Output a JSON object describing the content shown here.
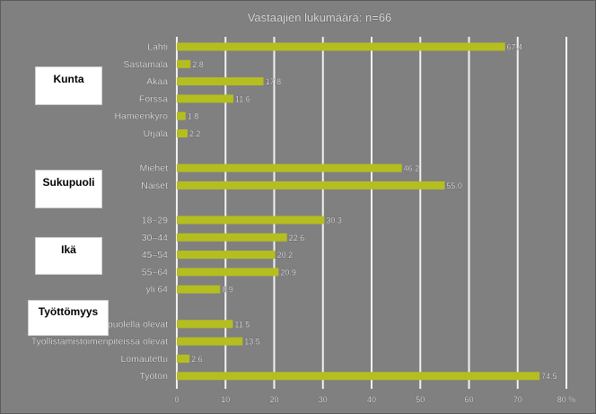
{
  "chart_data": {
    "type": "bar",
    "orientation": "horizontal",
    "title": "Vastaajien lukumäärä: n=66",
    "categories": [
      "Lahti",
      "Sastamala",
      "Akaa",
      "Forssa",
      "Hämeenkyrö",
      "Urjala",
      "Miehet",
      "Naiset",
      "18–29",
      "30–44",
      "45–54",
      "55–64",
      "yli 64",
      "Työvoiman ulkopuolella olevat",
      "Työllistämistoimenpiteissä olevat",
      "Lomautettu",
      "Työtön"
    ],
    "gap_after": [
      5,
      7,
      12
    ],
    "values": [
      67.4,
      2.8,
      17.8,
      11.6,
      1.8,
      2.2,
      46.2,
      55.0,
      30.3,
      22.6,
      20.2,
      20.9,
      8.9,
      11.5,
      13.5,
      2.6,
      74.5
    ],
    "value_labels": [
      "67.4",
      "2.8",
      "17.8",
      "11.6",
      "1.8",
      "2.2",
      "46.2",
      "55.0",
      "30.3",
      "22.6",
      "20.2",
      "20.9",
      "8.9",
      "11.5",
      "13.5",
      "2.6",
      "74.5"
    ],
    "xlim": [
      0,
      80
    ],
    "xticks": [
      0,
      10,
      20,
      30,
      40,
      50,
      60,
      70,
      80
    ],
    "x_unit": "%",
    "grid": true,
    "colors": {
      "bar": "#b5be1f",
      "grid": "#f2f2f2"
    }
  },
  "groups": [
    {
      "label": "Kunta"
    },
    {
      "label": "Sukupuoli"
    },
    {
      "label": "Ikä"
    },
    {
      "label": "Työttömyys"
    }
  ]
}
